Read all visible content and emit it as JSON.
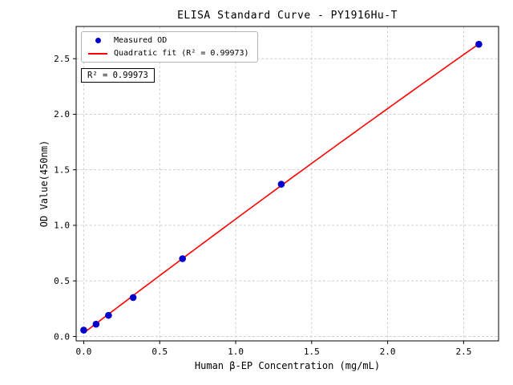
{
  "chart_data": {
    "type": "scatter",
    "title": "ELISA Standard Curve - PY1916Hu-T",
    "xlabel": "Human β-EP Concentration (mg/mL)",
    "ylabel": "OD Value(450nm)",
    "series": [
      {
        "name": "Measured OD",
        "type": "scatter",
        "x": [
          0.0,
          0.081,
          0.163,
          0.325,
          0.65,
          1.3,
          2.6
        ],
        "y": [
          0.057,
          0.11,
          0.19,
          0.35,
          0.7,
          1.37,
          2.63
        ]
      },
      {
        "name": "Quadratic fit (R² = 0.99973)",
        "type": "quadratic-fit",
        "r_squared": 0.99973
      }
    ],
    "annotation": "R² = 0.99973",
    "xticks": [
      0.0,
      0.5,
      1.0,
      1.5,
      2.0,
      2.5
    ],
    "yticks": [
      0.0,
      0.5,
      1.0,
      1.5,
      2.0,
      2.5
    ],
    "xlim": [
      -0.05,
      2.73
    ],
    "ylim": [
      -0.04,
      2.79
    ],
    "grid": true,
    "legend_position": "upper left",
    "colors": {
      "points": "#0000cd",
      "fit_line": "#ff0000",
      "grid": "#c8c8c8",
      "frame": "#000000"
    }
  }
}
